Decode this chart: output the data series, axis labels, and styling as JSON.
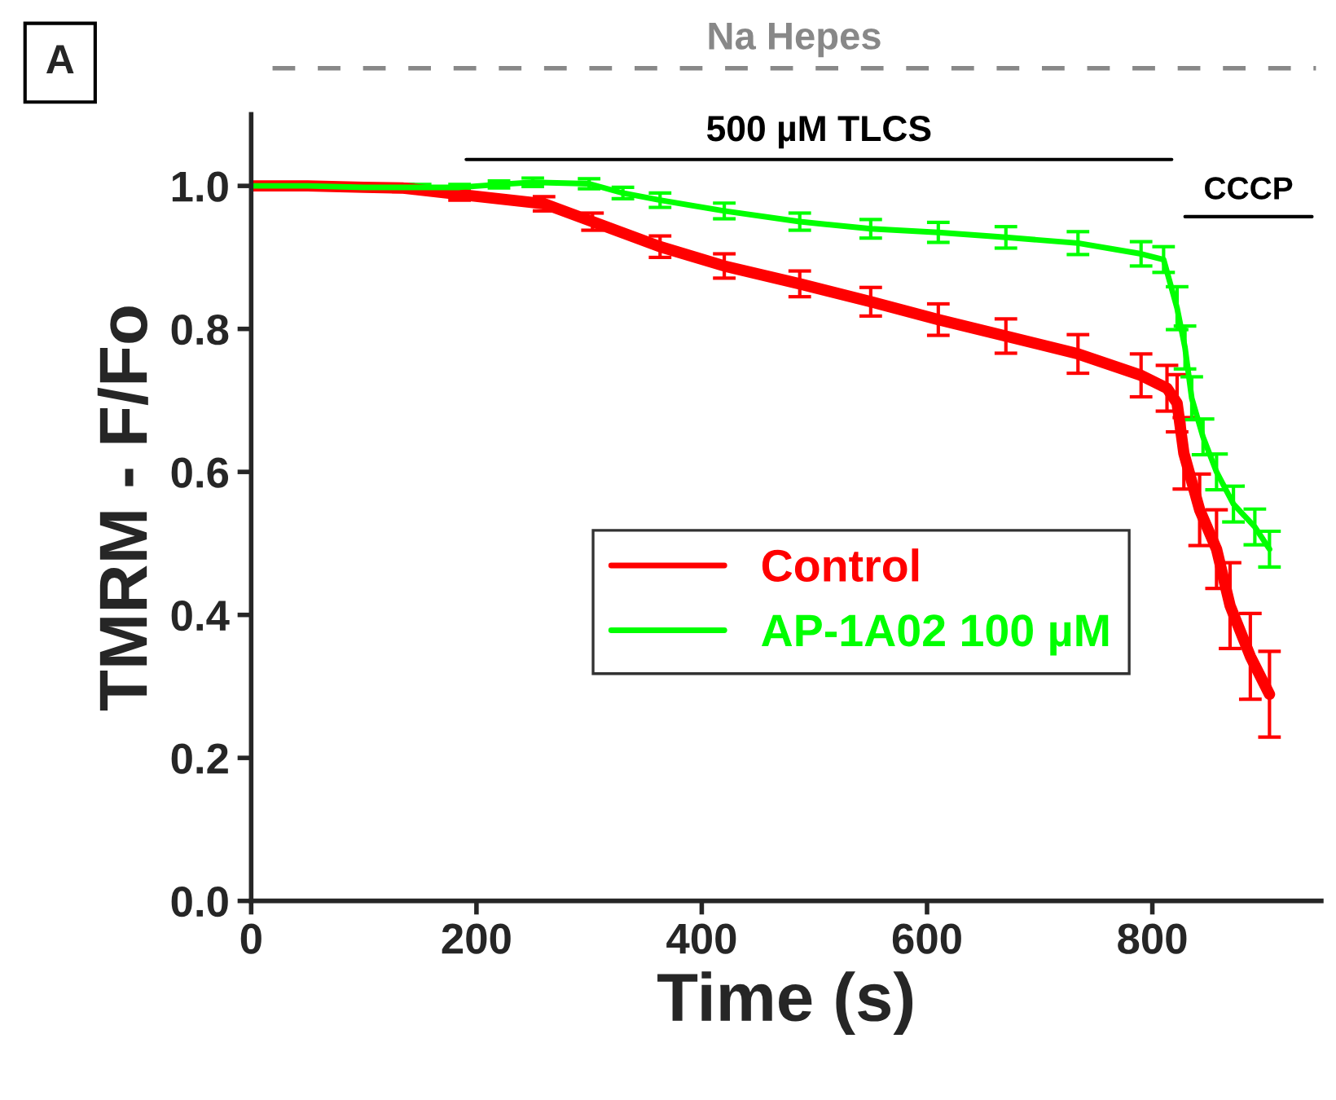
{
  "chart_data": {
    "type": "line",
    "xlabel": "Time (s)",
    "ylabel": "TMRM - F/Fo",
    "xlim": [
      0,
      950
    ],
    "xticks": [
      0,
      200,
      400,
      600,
      800
    ],
    "ylim": [
      0,
      1.1
    ],
    "yticks": [
      {
        "value": 0,
        "label": "0.0"
      },
      0.2,
      0.4,
      0.6,
      0.8,
      {
        "value": 1,
        "label": "1.0"
      }
    ],
    "legend": "center",
    "grid": false,
    "marker": "none",
    "line_style": "solid",
    "series": [
      {
        "name": "Control",
        "color": "#ff0000",
        "x": [
          0,
          50,
          100,
          135,
          185,
          260,
          303,
          363,
          420,
          487,
          550,
          610,
          670,
          734,
          790,
          813,
          822,
          828,
          842,
          857,
          869,
          887,
          904
        ],
        "values": [
          1.0,
          1.0,
          0.998,
          0.997,
          0.988,
          0.975,
          0.95,
          0.915,
          0.888,
          0.863,
          0.838,
          0.813,
          0.79,
          0.765,
          0.735,
          0.717,
          0.696,
          0.626,
          0.547,
          0.492,
          0.413,
          0.342,
          0.289
        ],
        "errors": [
          0.003,
          0.003,
          0.004,
          0.005,
          0.008,
          0.01,
          0.012,
          0.015,
          0.017,
          0.018,
          0.02,
          0.022,
          0.024,
          0.027,
          0.03,
          0.032,
          0.04,
          0.05,
          0.05,
          0.055,
          0.06,
          0.06,
          0.06
        ]
      },
      {
        "name": "AP-1A02 100 µM",
        "color": "#00ff00",
        "x": [
          0,
          50,
          100,
          150,
          185,
          220,
          250,
          300,
          330,
          363,
          420,
          487,
          550,
          610,
          670,
          734,
          790,
          810,
          822,
          829,
          835,
          845,
          857,
          872,
          891,
          904
        ],
        "values": [
          1.0,
          1.0,
          0.998,
          0.998,
          0.998,
          1.002,
          1.005,
          1.003,
          0.99,
          0.98,
          0.965,
          0.95,
          0.94,
          0.935,
          0.928,
          0.92,
          0.905,
          0.897,
          0.829,
          0.774,
          0.703,
          0.649,
          0.6,
          0.555,
          0.523,
          0.492
        ],
        "errors": [
          0.003,
          0.003,
          0.003,
          0.004,
          0.004,
          0.005,
          0.006,
          0.007,
          0.008,
          0.01,
          0.011,
          0.012,
          0.013,
          0.014,
          0.015,
          0.016,
          0.017,
          0.018,
          0.03,
          0.03,
          0.03,
          0.025,
          0.025,
          0.025,
          0.025,
          0.025
        ]
      }
    ],
    "annotations": [
      "A",
      "Na Hepes",
      "500 µM TLCS",
      "CCCP"
    ]
  }
}
